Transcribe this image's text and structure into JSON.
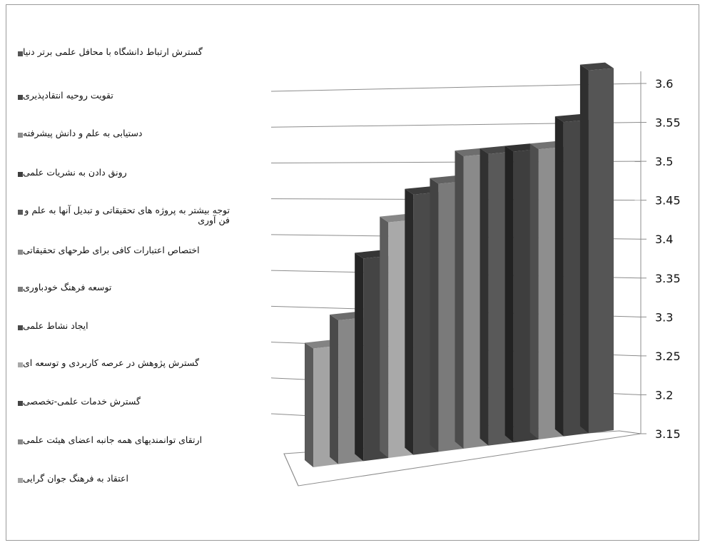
{
  "chart_data": {
    "type": "bar",
    "categories": [
      "گسترش ارتباط دانشگاه با محافل علمی برتر دنیا",
      "تقویت روحیه انتقادپذیری",
      "دستیابی به علم و دانش پیشرفته",
      "رونق دادن به نشریات علمی",
      "توجه بیشتر به  پروژه های تحقیقاتی و تبدیل آنها به علم و فن آوری",
      "اختصاص اعتبارات کافی برای طرحهای تحقیقاتی",
      "توسعه فرهنگ خودباوری",
      "ایجاد نشاط علمی",
      "گسترش پژوهش در عرصه کاربردی و توسعه ای",
      "گسترش خدمات علمی-تخصصی",
      "ارتقای توانمندیهای همه جانبه اعضای هیئت علمی",
      "اعتقاد به فرهنگ جوان گرایی"
    ],
    "values": [
      3.59,
      3.53,
      3.5,
      3.5,
      3.5,
      3.5,
      3.47,
      3.46,
      3.43,
      3.39,
      3.32,
      3.29
    ],
    "ylim": [
      3.15,
      3.6
    ],
    "yticks": [
      "3.15",
      "3.2",
      "3.25",
      "3.3",
      "3.35",
      "3.4",
      "3.45",
      "3.5",
      "3.55",
      "3.6"
    ],
    "title": "",
    "xlabel": "",
    "ylabel": "",
    "grid": true,
    "legend_position": "left",
    "colors": [
      "#555555",
      "#474747",
      "#8e8e8e",
      "#3e3e3e",
      "#595959",
      "#8a8a8a",
      "#7a7a7a",
      "#4a4a4a",
      "#a9a9a9",
      "#444444",
      "#878787",
      "#a4a4a4"
    ]
  }
}
